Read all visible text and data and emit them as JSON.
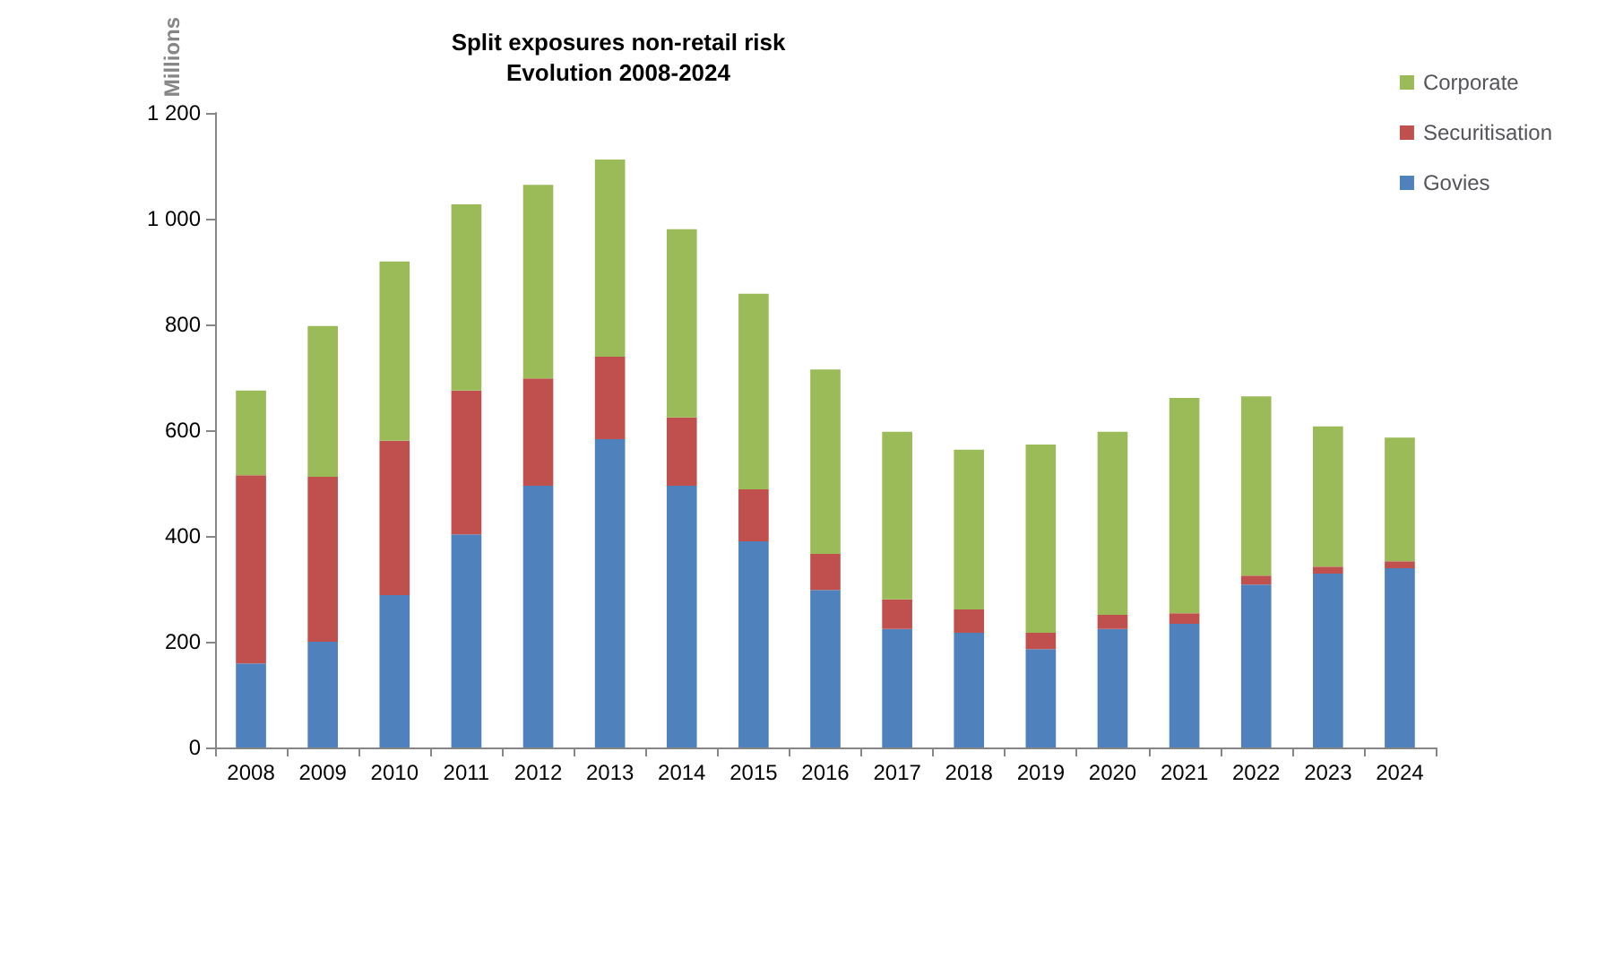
{
  "chart_data": {
    "type": "bar",
    "title": "Split exposures non-retail risk\nEvolution 2008-2024",
    "ylabel": "Millions",
    "stacked": true,
    "grid": false,
    "legend": "top right",
    "categories": [
      "2008",
      "2009",
      "2010",
      "2011",
      "2012",
      "2013",
      "2014",
      "2015",
      "2016",
      "2017",
      "2018",
      "2019",
      "2020",
      "2021",
      "2022",
      "2023",
      "2024"
    ],
    "ylim": [
      0,
      1200
    ],
    "yticks": [
      0,
      200,
      400,
      600,
      800,
      {
        "value": 1000,
        "label": "1 000"
      },
      {
        "value": 1200,
        "label": "1 200"
      }
    ],
    "series": [
      {
        "name": "Govies",
        "color": "#4f81bd",
        "values": [
          159,
          200,
          288,
          403,
          495,
          583,
          495,
          390,
          298,
          224,
          217,
          186,
          224,
          234,
          308,
          329,
          339
        ]
      },
      {
        "name": "Securitisation",
        "color": "#c0504d",
        "values": [
          356,
          312,
          292,
          272,
          203,
          156,
          129,
          98,
          68,
          56,
          44,
          31,
          27,
          20,
          17,
          13,
          13
        ]
      },
      {
        "name": "Corporate",
        "color": "#9bbb59",
        "values": [
          160,
          285,
          339,
          352,
          366,
          373,
          356,
          370,
          349,
          317,
          302,
          356,
          346,
          407,
          339,
          265,
          234
        ]
      }
    ]
  }
}
